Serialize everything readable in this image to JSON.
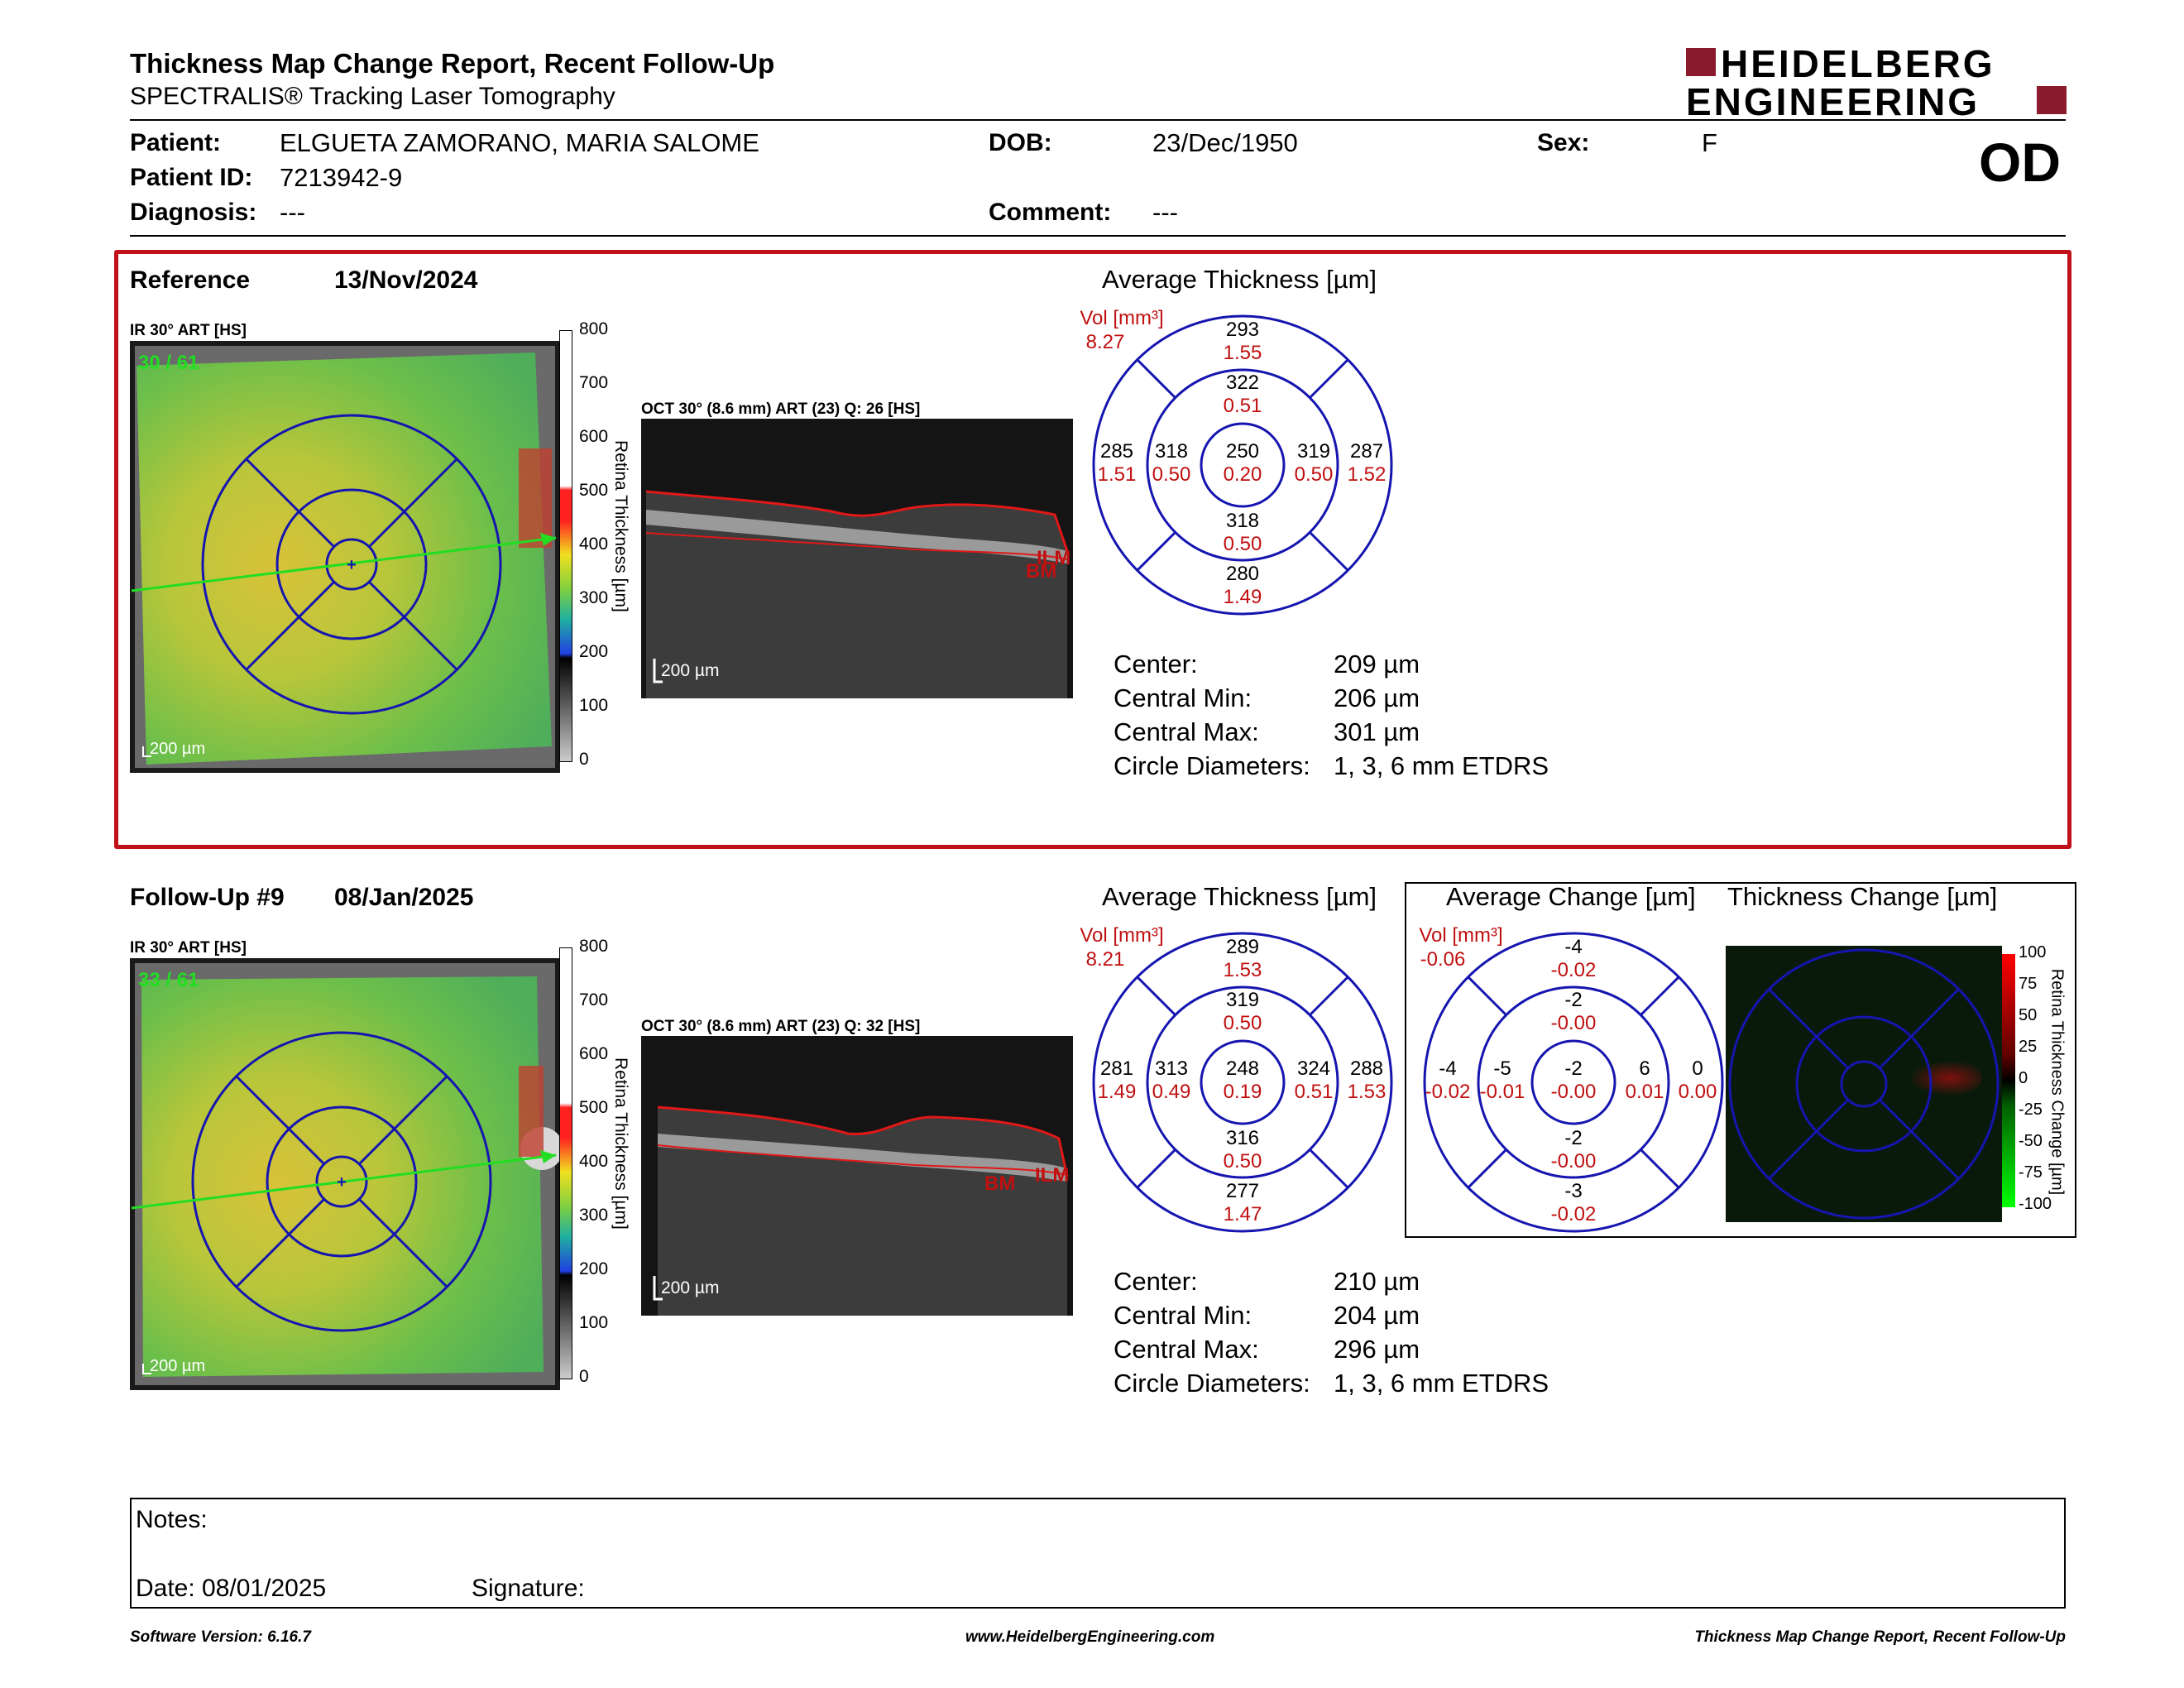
{
  "header": {
    "title": "Thickness Map Change Report, Recent Follow-Up",
    "subtitle": "SPECTRALIS® Tracking Laser Tomography",
    "brand_line1": "HEIDELBERG",
    "brand_line2": "ENGINEERING",
    "eye": "OD"
  },
  "patient": {
    "patient_label": "Patient:",
    "patient_value": "ELGUETA ZAMORANO, MARIA SALOME",
    "id_label": "Patient ID:",
    "id_value": "7213942-9",
    "diagnosis_label": "Diagnosis:",
    "diagnosis_value": "---",
    "dob_label": "DOB:",
    "dob_value": "23/Dec/1950",
    "comment_label": "Comment:",
    "comment_value": "---",
    "sex_label": "Sex:",
    "sex_value": "F"
  },
  "colors": {
    "accent_red": "#c0101a",
    "circle_blue": "#1515b0",
    "brand_red": "#8b1a2e"
  },
  "reference": {
    "label": "Reference",
    "date": "13/Nov/2024",
    "ir_caption": "IR 30° ART [HS]",
    "ir_overlay": "30 / 61",
    "scale_bar": "200 µm",
    "oct_caption": "OCT 30° (8.6 mm) ART (23) Q: 26 [HS]",
    "oct_scale": "200 µm",
    "oct_ilm": "ILM",
    "oct_bm": "BM",
    "colorbar_ticks": [
      "800",
      "700",
      "600",
      "500",
      "400",
      "300",
      "200",
      "100",
      "0"
    ],
    "colorbar_label": "Retina Thickness [µm]",
    "avg_title": "Average Thickness [µm]",
    "vol_label": "Vol [mm³]",
    "vol_value": "8.27",
    "etdrs": {
      "outer_top": [
        "293",
        "1.55"
      ],
      "inner_top": [
        "322",
        "0.51"
      ],
      "outer_left": [
        "285",
        "1.51"
      ],
      "inner_left": [
        "318",
        "0.50"
      ],
      "center": [
        "250",
        "0.20"
      ],
      "inner_right": [
        "319",
        "0.50"
      ],
      "outer_right": [
        "287",
        "1.52"
      ],
      "inner_bottom": [
        "318",
        "0.50"
      ],
      "outer_bottom": [
        "280",
        "1.49"
      ]
    },
    "stats": [
      {
        "label": "Center:",
        "value": "209 µm"
      },
      {
        "label": "Central Min:",
        "value": "206 µm"
      },
      {
        "label": "Central Max:",
        "value": "301 µm"
      },
      {
        "label": "Circle Diameters:",
        "value": "1, 3, 6 mm ETDRS"
      }
    ]
  },
  "followup": {
    "label": "Follow-Up #9",
    "date": "08/Jan/2025",
    "ir_caption": "IR 30° ART [HS]",
    "ir_overlay": "33 / 61",
    "scale_bar": "200 µm",
    "oct_caption": "OCT 30° (8.6 mm) ART (23) Q: 32 [HS]",
    "oct_scale": "200 µm",
    "oct_ilm": "ILM",
    "oct_bm": "BM",
    "colorbar_ticks": [
      "800",
      "700",
      "600",
      "500",
      "400",
      "300",
      "200",
      "100",
      "0"
    ],
    "colorbar_label": "Retina Thickness [µm]",
    "avg_title": "Average Thickness [µm]",
    "vol_label": "Vol [mm³]",
    "vol_value": "8.21",
    "etdrs": {
      "outer_top": [
        "289",
        "1.53"
      ],
      "inner_top": [
        "319",
        "0.50"
      ],
      "outer_left": [
        "281",
        "1.49"
      ],
      "inner_left": [
        "313",
        "0.49"
      ],
      "center": [
        "248",
        "0.19"
      ],
      "inner_right": [
        "324",
        "0.51"
      ],
      "outer_right": [
        "288",
        "1.53"
      ],
      "inner_bottom": [
        "316",
        "0.50"
      ],
      "outer_bottom": [
        "277",
        "1.47"
      ]
    },
    "stats": [
      {
        "label": "Center:",
        "value": "210 µm"
      },
      {
        "label": "Central Min:",
        "value": "204 µm"
      },
      {
        "label": "Central Max:",
        "value": "296 µm"
      },
      {
        "label": "Circle Diameters:",
        "value": "1, 3, 6 mm ETDRS"
      }
    ],
    "change_title": "Average Change [µm]",
    "change_vol_label": "Vol [mm³]",
    "change_vol_value": "-0.06",
    "change_etdrs": {
      "outer_top": [
        "-4",
        "-0.02"
      ],
      "inner_top": [
        "-2",
        "-0.00"
      ],
      "outer_left": [
        "-4",
        "-0.02"
      ],
      "inner_left": [
        "-5",
        "-0.01"
      ],
      "center": [
        "-2",
        "-0.00"
      ],
      "inner_right": [
        "6",
        "0.01"
      ],
      "outer_right": [
        "0",
        "0.00"
      ],
      "inner_bottom": [
        "-2",
        "-0.00"
      ],
      "outer_bottom": [
        "-3",
        "-0.02"
      ]
    },
    "thick_change_title": "Thickness Change [µm]",
    "thick_change_ticks": [
      "100",
      "75",
      "50",
      "25",
      "0",
      "-25",
      "-50",
      "-75",
      "-100"
    ],
    "thick_change_label": "Retina Thickness Change [µm]"
  },
  "notes": {
    "notes_label": "Notes:",
    "date_label": "Date: 08/01/2025",
    "signature_label": "Signature:"
  },
  "footer": {
    "left": "Software Version: 6.16.7",
    "center": "www.HeidelbergEngineering.com",
    "right": "Thickness Map Change Report, Recent Follow-Up"
  }
}
